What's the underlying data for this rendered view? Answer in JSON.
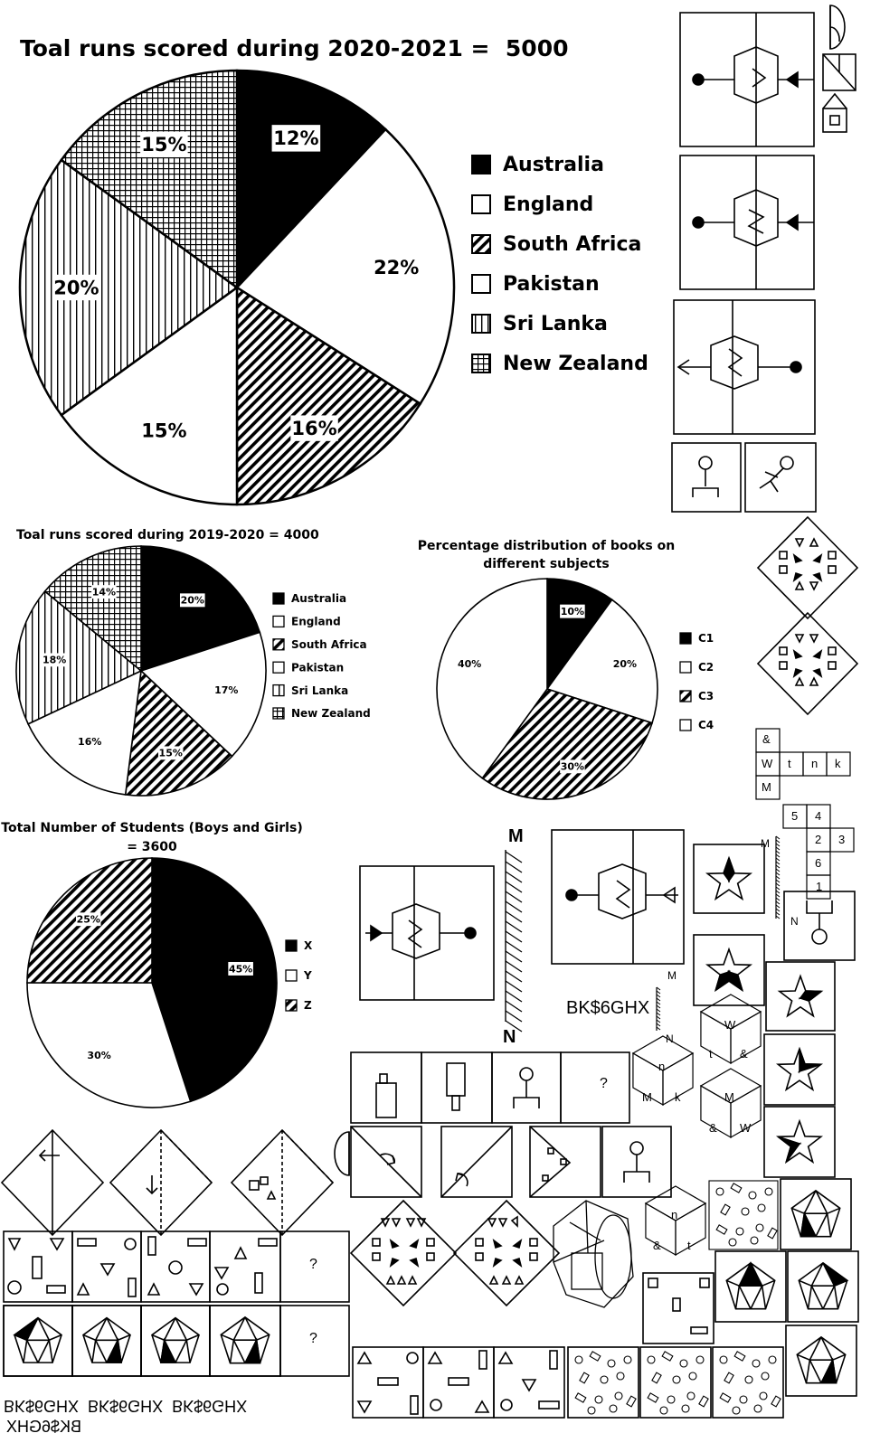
{
  "chart_data": [
    {
      "type": "pie",
      "title": "Toal runs scored during 2020-2021 =  5000",
      "categories": [
        "Australia",
        "England",
        "South Africa",
        "Pakistan",
        "Sri Lanka",
        "New Zealand"
      ],
      "values": [
        12,
        22,
        16,
        15,
        20,
        15
      ],
      "labels": [
        "12%",
        "22%",
        "16%",
        "15%",
        "20%",
        "15%"
      ],
      "patterns": [
        "solid",
        "white",
        "diag",
        "white",
        "vert",
        "grid"
      ],
      "legend": "right"
    },
    {
      "type": "pie",
      "title": "Toal runs scored during 2019-2020 = 4000",
      "categories": [
        "Australia",
        "England",
        "South Africa",
        "Pakistan",
        "Sri Lanka",
        "New Zealand"
      ],
      "values": [
        20,
        17,
        15,
        16,
        18,
        14
      ],
      "labels": [
        "20%",
        "17%",
        "15%",
        "16%",
        "18%",
        "14%"
      ],
      "patterns": [
        "solid",
        "white",
        "diag",
        "white",
        "vert",
        "grid"
      ],
      "legend": "right"
    },
    {
      "type": "pie",
      "title": "Percentage distribution of books on different subjects",
      "title_lines": [
        "Percentage distribution of books on",
        "different subjects"
      ],
      "categories": [
        "C1",
        "C2",
        "C3",
        "C4"
      ],
      "values": [
        10,
        20,
        30,
        40
      ],
      "labels": [
        "10%",
        "20%",
        "30%",
        "40%"
      ],
      "patterns": [
        "solid",
        "white",
        "diag",
        "white"
      ],
      "legend": "right"
    },
    {
      "type": "pie",
      "title": "Total Number of Students (Boys and Girls) = 3600",
      "title_lines": [
        "Total Number of Students (Boys and Girls)",
        "= 3600"
      ],
      "categories": [
        "X",
        "Y",
        "Z"
      ],
      "values": [
        45,
        30,
        25
      ],
      "labels": [
        "45%",
        "30%",
        "25%"
      ],
      "patterns": [
        "solid",
        "white",
        "diag"
      ],
      "legend": "right"
    }
  ],
  "puzzles": {
    "mirror_top": "M",
    "mirror_bottom": "N",
    "mirror_text": "BK$6GHX",
    "mirror_small_m": "M",
    "mirror_small_n": "N",
    "mirror_right_m": "M",
    "mirror_right_n": "N",
    "mirrored_line1": "BK$6GHX  BK$6GHX  BK$6GHX",
    "mirrored_line2": "BK$6GHX",
    "question_mark": "?",
    "cube_net": [
      "&",
      "W",
      "t",
      "n",
      "k",
      "M"
    ],
    "dice_net": [
      "5",
      "4",
      "2",
      "3",
      "6",
      "1"
    ],
    "cube_a": [
      "n",
      "M",
      "k"
    ],
    "cube_b": [
      "W",
      "t",
      "&"
    ],
    "cube_c": [
      "M",
      "&",
      "W"
    ],
    "cube_d": [
      "n",
      "&",
      "t"
    ]
  }
}
